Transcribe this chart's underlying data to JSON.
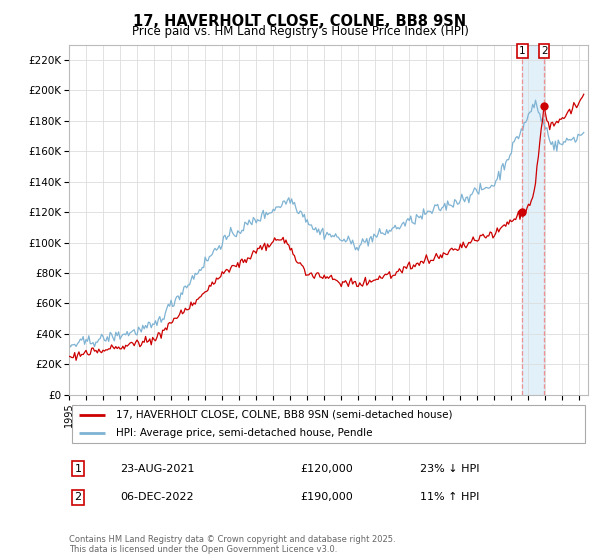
{
  "title": "17, HAVERHOLT CLOSE, COLNE, BB8 9SN",
  "subtitle": "Price paid vs. HM Land Registry's House Price Index (HPI)",
  "ylabel_ticks": [
    "£0",
    "£20K",
    "£40K",
    "£60K",
    "£80K",
    "£100K",
    "£120K",
    "£140K",
    "£160K",
    "£180K",
    "£200K",
    "£220K"
  ],
  "ytick_values": [
    0,
    20000,
    40000,
    60000,
    80000,
    100000,
    120000,
    140000,
    160000,
    180000,
    200000,
    220000
  ],
  "ylim": [
    0,
    230000
  ],
  "xlim_start": 1995.0,
  "xlim_end": 2025.5,
  "legend_line1": "17, HAVERHOLT CLOSE, COLNE, BB8 9SN (semi-detached house)",
  "legend_line2": "HPI: Average price, semi-detached house, Pendle",
  "sale1_date": "23-AUG-2021",
  "sale1_price": "£120,000",
  "sale1_note": "23% ↓ HPI",
  "sale2_date": "06-DEC-2022",
  "sale2_price": "£190,000",
  "sale2_note": "11% ↑ HPI",
  "copyright": "Contains HM Land Registry data © Crown copyright and database right 2025.\nThis data is licensed under the Open Government Licence v3.0.",
  "line_color_red": "#cc0000",
  "line_color_blue": "#7fb3d3",
  "grid_color": "#dddddd",
  "background_color": "#ffffff",
  "sale1_year": 2021.64,
  "sale1_value": 120000,
  "sale2_year": 2022.92,
  "sale2_value": 190000
}
